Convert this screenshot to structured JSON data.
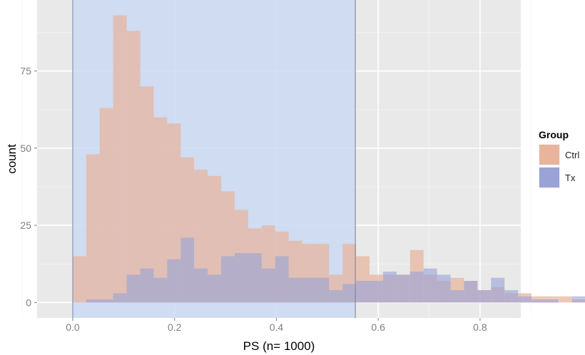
{
  "chart_data": {
    "type": "bar",
    "subtype": "histogram-overlay",
    "xlabel": "PS (n= 1000)",
    "ylabel": "count",
    "xlim": [
      -0.07,
      0.88
    ],
    "ylim": [
      -5,
      98
    ],
    "xticks": [
      0.0,
      0.2,
      0.4,
      0.6,
      0.8
    ],
    "xtick_labels": [
      "0.0",
      "0.2",
      "0.4",
      "0.6",
      "0.8"
    ],
    "yticks": [
      0,
      25,
      50,
      75
    ],
    "ytick_labels": [
      "0",
      "25",
      "50",
      "75"
    ],
    "grid": true,
    "legend_position": "right",
    "legend": {
      "title": "Group",
      "items": [
        {
          "label": "Ctrl",
          "color": "#e8b49c"
        },
        {
          "label": "Tx",
          "color": "#9aa3d6"
        }
      ]
    },
    "common_support": {
      "xmin": 0.0,
      "xmax": 0.555,
      "color": "#c8d8f2"
    },
    "bin_width": 0.0265,
    "x_start": 0.0,
    "series": [
      {
        "name": "Ctrl",
        "color": "#e8b49c",
        "values": [
          15,
          48,
          63,
          93,
          88,
          70,
          60,
          58,
          47,
          43,
          41,
          36,
          30,
          24,
          25,
          23,
          20,
          19,
          19,
          9,
          19,
          15,
          9,
          9,
          9,
          17,
          9,
          7,
          8,
          7,
          4,
          5,
          3,
          3,
          2,
          2,
          2,
          1,
          0,
          1
        ]
      },
      {
        "name": "Tx",
        "color": "#9aa3d6",
        "values": [
          0,
          1,
          1,
          3,
          9,
          11,
          8,
          14,
          21,
          11,
          9,
          15,
          16,
          16,
          11,
          15,
          8,
          8,
          8,
          4,
          6,
          7,
          7,
          10,
          9,
          10,
          11,
          9,
          4,
          7,
          4,
          8,
          4,
          2,
          1,
          1,
          0,
          2,
          1,
          2
        ]
      }
    ]
  }
}
